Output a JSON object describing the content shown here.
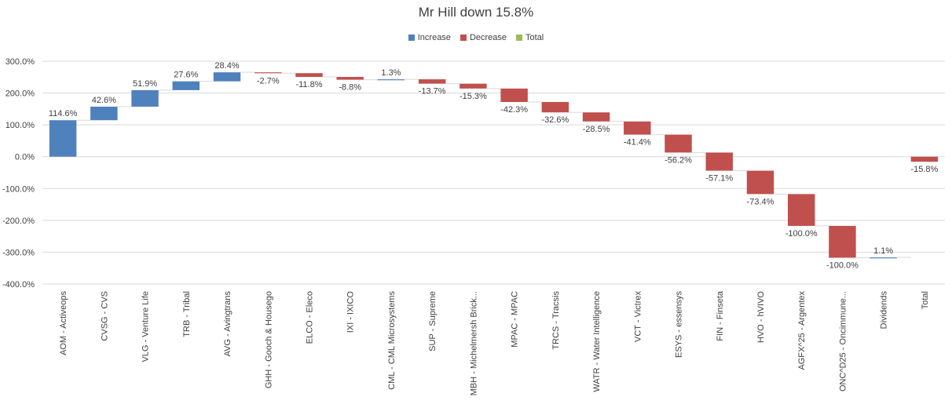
{
  "chart_data": {
    "type": "waterfall",
    "title": "Mr Hill down 15.8%",
    "legend": [
      {
        "name": "Increase",
        "color": "#4f81bd"
      },
      {
        "name": "Decrease",
        "color": "#c0504d"
      },
      {
        "name": "Total",
        "color": "#9bbb59"
      }
    ],
    "ylim": [
      -400,
      300
    ],
    "yticks": [
      300,
      200,
      100,
      0,
      -100,
      -200,
      -300,
      -400
    ],
    "ytick_labels": [
      "300.0%",
      "200.0%",
      "100.0%",
      "0.0%",
      "-100.0%",
      "-200.0%",
      "-300.0%",
      "-400.0%"
    ],
    "grid": true,
    "categories": [
      "AOM - Activeops",
      "CVSG - CVS",
      "VLG - Venture Life",
      "TRB - Tribal",
      "AVG - Avingtrans",
      "GHH - Gooch & Housego",
      "ELCO - Eleco",
      "IXI - IXICO",
      "CML - CML Microsystems",
      "SUP - Supreme",
      "MBH - Michelmersh Brick...",
      "MPAC - MPAC",
      "TRCS - Tracsis",
      "WATR - Water Intelligence",
      "VCT - Victrex",
      "ESYS - essensys",
      "FIN - Finseta",
      "HVO - hVIVO",
      "AGFX^25 - Argentex",
      "ONC^D25 - Oncimmune...",
      "Dividends",
      "Total"
    ],
    "values": [
      114.6,
      42.6,
      51.9,
      27.6,
      28.4,
      -2.7,
      -11.8,
      -8.8,
      1.3,
      -13.7,
      -15.3,
      -42.3,
      -32.6,
      -28.5,
      -41.4,
      -56.2,
      -57.1,
      -73.4,
      -100.0,
      -100.0,
      1.1,
      -15.8
    ],
    "labels": [
      "114.6%",
      "42.6%",
      "51.9%",
      "27.6%",
      "28.4%",
      "-2.7%",
      "-11.8%",
      "-8.8%",
      "1.3%",
      "-13.7%",
      "-15.3%",
      "-42.3%",
      "-32.6%",
      "-28.5%",
      "-41.4%",
      "-56.2%",
      "-57.1%",
      "-73.4%",
      "-100.0%",
      "-100.0%",
      "1.1%",
      "-15.8%"
    ]
  }
}
